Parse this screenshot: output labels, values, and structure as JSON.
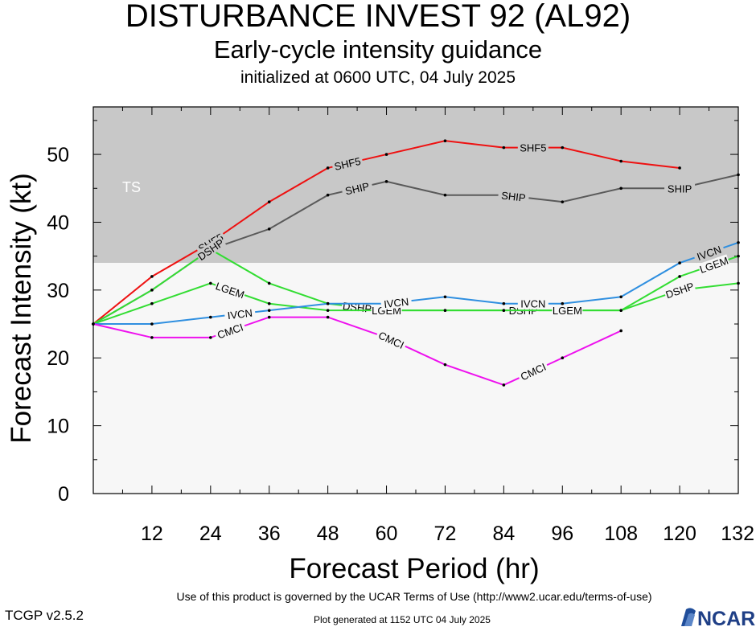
{
  "header": {
    "title": "DISTURBANCE INVEST 92 (AL92)",
    "subtitle": "Early-cycle intensity guidance",
    "init": "initialized at 0600 UTC, 04 July 2025"
  },
  "footer": {
    "terms": "Use of this product is governed by the UCAR Terms of Use (http://www2.ucar.edu/terms-of-use)",
    "version": "TCGP v2.5.2",
    "generated": "Plot generated at 1152 UTC   04 July 2025",
    "logo_text": "NCAR"
  },
  "chart_data": {
    "type": "line",
    "title": "DISTURBANCE INVEST 92 (AL92)",
    "xlabel": "Forecast Period (hr)",
    "ylabel": "Forecast Intensity (kt)",
    "xlim": [
      0,
      132
    ],
    "ylim": [
      0,
      57
    ],
    "x_ticks": [
      12,
      24,
      36,
      48,
      60,
      72,
      84,
      96,
      108,
      120,
      132
    ],
    "y_ticks": [
      0,
      10,
      20,
      30,
      40,
      50
    ],
    "bands": [
      {
        "label": "TS",
        "from": 34,
        "to": 57,
        "color": "#c8c8c8"
      },
      {
        "label": "",
        "from": 0,
        "to": 34,
        "color": "#f7f7f7"
      }
    ],
    "series": [
      {
        "name": "SHF5",
        "color": "#ee1111",
        "x": [
          0,
          12,
          24,
          36,
          48,
          60,
          72,
          84,
          96,
          108,
          120
        ],
        "values": [
          25,
          32,
          37,
          43,
          48,
          50,
          52,
          51,
          51,
          49,
          48
        ],
        "labels_at": [
          24,
          52,
          90
        ]
      },
      {
        "name": "SHIP",
        "color": "#5a5a5a",
        "x": [
          0,
          12,
          24,
          36,
          48,
          60,
          72,
          84,
          96,
          108,
          120,
          132
        ],
        "values": [
          25,
          30,
          36,
          39,
          44,
          46,
          44,
          44,
          43,
          45,
          45,
          47
        ],
        "labels_at": [
          24,
          54,
          86,
          120
        ]
      },
      {
        "name": "DSHP",
        "color": "#33dd33",
        "x": [
          0,
          12,
          24,
          36,
          48,
          60,
          72,
          84,
          96,
          108,
          120,
          132
        ],
        "values": [
          25,
          30,
          36,
          31,
          28,
          27,
          27,
          27,
          27,
          27,
          30,
          31
        ],
        "labels_at": [
          24,
          54,
          88,
          120
        ]
      },
      {
        "name": "LGEM",
        "color": "#33dd33",
        "x": [
          0,
          12,
          24,
          36,
          48,
          60,
          72,
          84,
          96,
          108,
          120,
          132
        ],
        "values": [
          25,
          28,
          31,
          28,
          27,
          27,
          27,
          27,
          27,
          27,
          32,
          35
        ],
        "labels_at": [
          28,
          60,
          97,
          127
        ]
      },
      {
        "name": "IVCN",
        "color": "#2f8fe0",
        "x": [
          0,
          12,
          24,
          36,
          48,
          60,
          72,
          84,
          96,
          108,
          120,
          132
        ],
        "values": [
          25,
          25,
          26,
          27,
          28,
          28,
          29,
          28,
          28,
          29,
          34,
          37
        ],
        "labels_at": [
          30,
          62,
          90,
          126
        ]
      },
      {
        "name": "CMCI",
        "color": "#ee11ee",
        "x": [
          0,
          12,
          24,
          36,
          48,
          60,
          72,
          84,
          96,
          108
        ],
        "values": [
          25,
          23,
          23,
          26,
          26,
          23,
          19,
          16,
          20,
          24
        ],
        "labels_at": [
          28,
          61,
          90
        ]
      }
    ]
  }
}
